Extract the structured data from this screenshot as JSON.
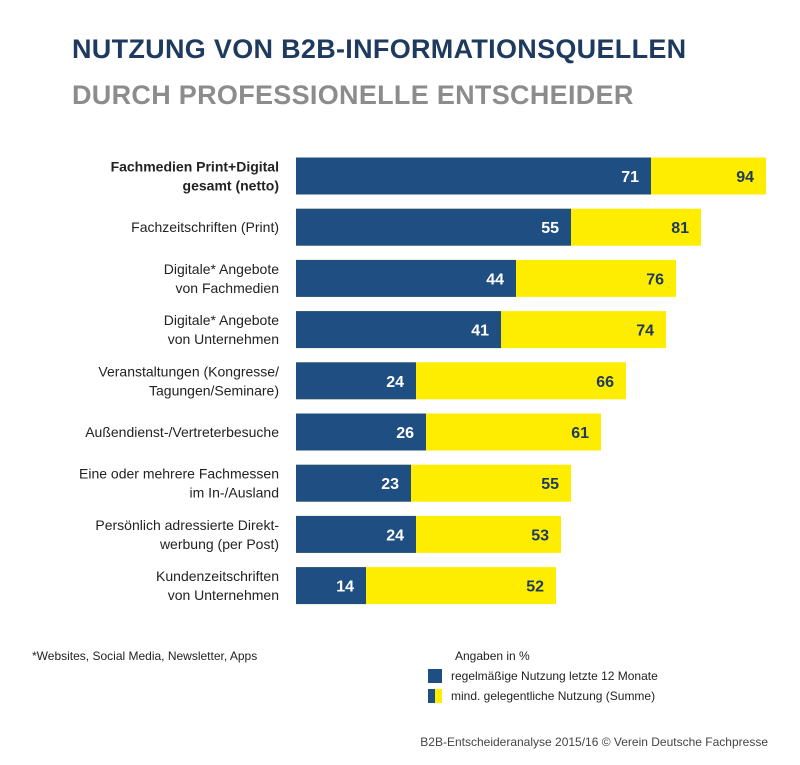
{
  "title": "NUTZUNG VON B2B-INFORMATIONSQUELLEN",
  "subtitle": "DURCH PROFESSIONELLE ENTSCHEIDER",
  "colors": {
    "regular": "#1f4e82",
    "sum": "#ffed00",
    "title": "#1e3a5f",
    "subtitle": "#8c8c8c"
  },
  "chart_data": {
    "type": "bar",
    "orientation": "horizontal",
    "categories": [
      [
        "Fachmedien Print+Digital",
        "gesamt (netto)"
      ],
      [
        "Fachzeitschriften (Print)"
      ],
      [
        "Digitale* Angebote",
        "von Fachmedien"
      ],
      [
        "Digitale* Angebote",
        "von Unternehmen"
      ],
      [
        "Veranstaltungen (Kongresse/",
        "Tagungen/Seminare)"
      ],
      [
        "Außendienst-/Vertreterbesuche"
      ],
      [
        "Eine oder mehrere Fachmessen",
        "im In-/Ausland"
      ],
      [
        "Persönlich adressierte Direkt-",
        "werbung (per Post)"
      ],
      [
        "Kundenzeitschriften",
        "von Unternehmen"
      ]
    ],
    "bold_category_index": 0,
    "series": [
      {
        "name": "regelmäßige Nutzung letzte 12 Monate",
        "values": [
          71,
          55,
          44,
          41,
          24,
          26,
          23,
          24,
          14
        ]
      },
      {
        "name": "mind. gelegentliche Nutzung (Summe)",
        "values": [
          94,
          81,
          76,
          74,
          66,
          61,
          55,
          53,
          52
        ]
      }
    ],
    "overlay": true,
    "xlim": [
      0,
      100
    ],
    "grid": false,
    "legend": "bottom-center"
  },
  "footnote": "*Websites, Social Media, Newsletter, Apps",
  "unit_note": "Angaben in %",
  "legend": {
    "regular": "regelmäßige Nutzung letzte 12 Monate",
    "sum": "mind. gelegentliche Nutzung (Summe)"
  },
  "source": "B2B-Entscheideranalyse 2015/16 © Verein Deutsche Fachpresse"
}
